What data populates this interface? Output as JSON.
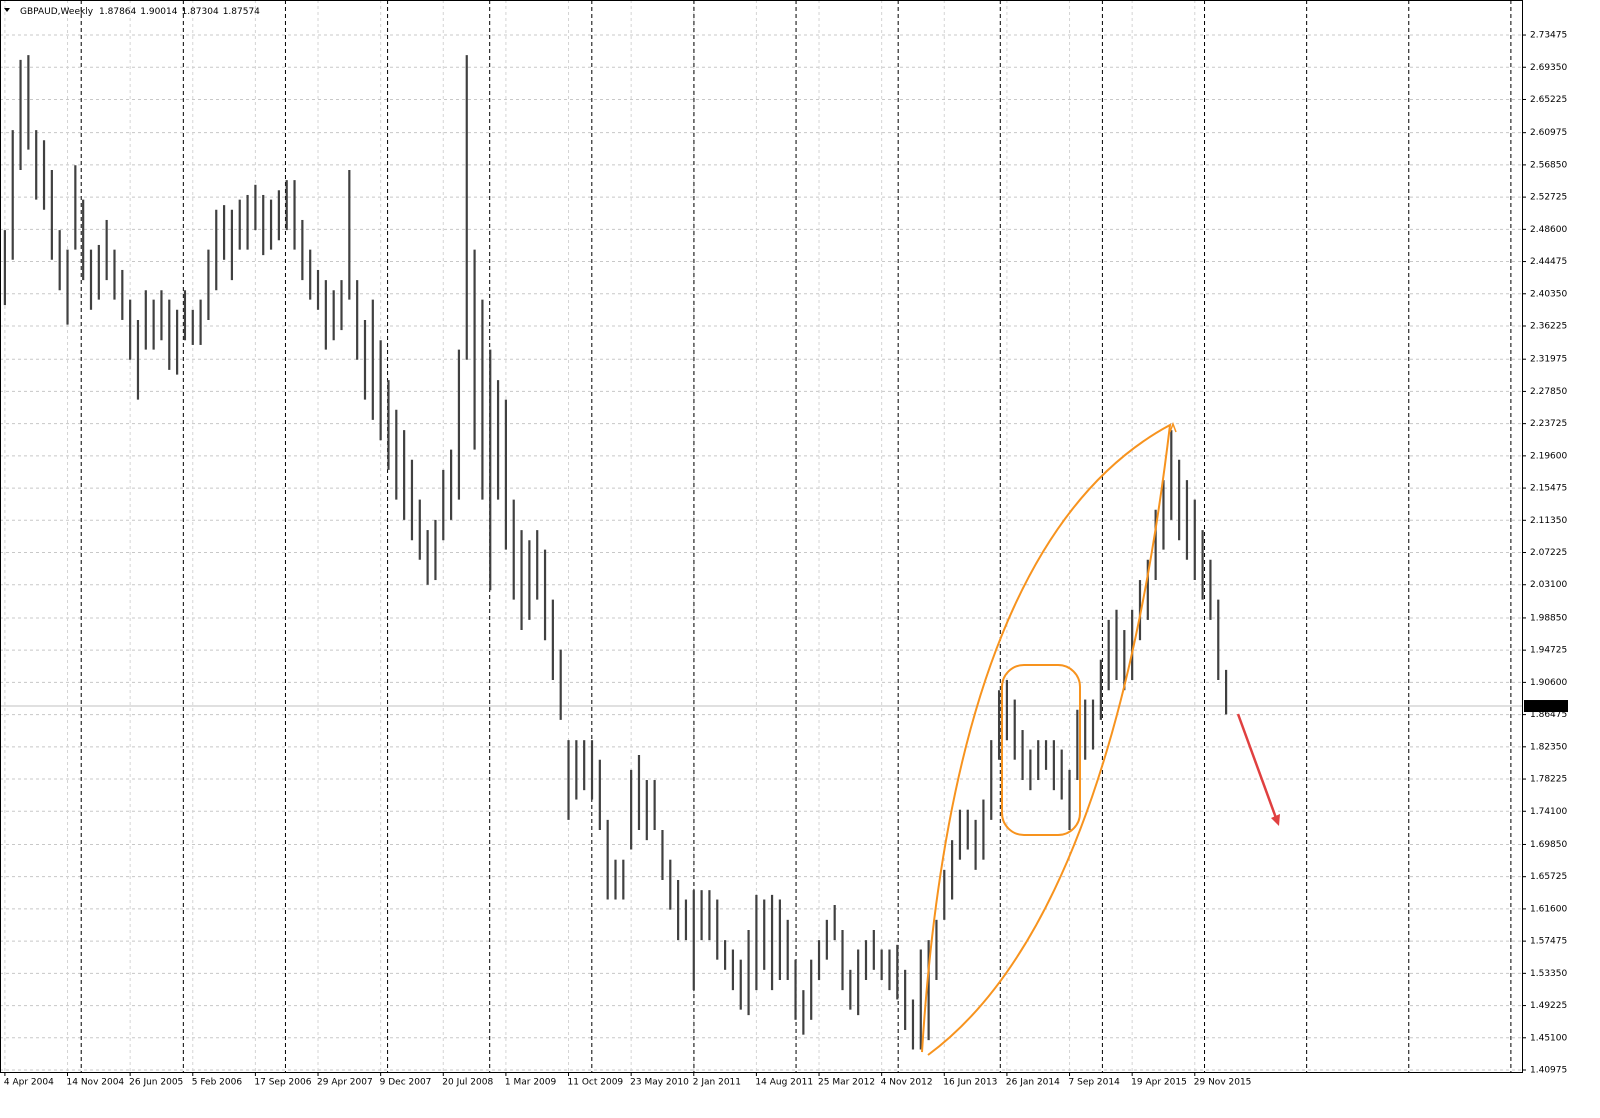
{
  "chart_data": {
    "type": "ohlc",
    "symbol": "GBPAUD,Weekly",
    "open": 1.87864,
    "high_now": 1.90014,
    "low_now": 1.87304,
    "close": 1.87574,
    "color": "#404040",
    "x": [
      0,
      4,
      8,
      12,
      16,
      20,
      24,
      28,
      32,
      36,
      40,
      44,
      48,
      52,
      56,
      60,
      64,
      68,
      72,
      76,
      80,
      84,
      88,
      92,
      96,
      100,
      104,
      108,
      112,
      116,
      120,
      124,
      128,
      132,
      136,
      140,
      144,
      148,
      152,
      156,
      160,
      164,
      168,
      172,
      176,
      180,
      184,
      188,
      192,
      196,
      200,
      204,
      208,
      212,
      216,
      220,
      224,
      228,
      232,
      236,
      240,
      244,
      248,
      252,
      256,
      260,
      264,
      268,
      272,
      276,
      280,
      284,
      288,
      292,
      296,
      300,
      304,
      308,
      312,
      316,
      320,
      324,
      328,
      332,
      336,
      340,
      344,
      348,
      352,
      356,
      360,
      364,
      368,
      372,
      376,
      380,
      384,
      388,
      392,
      396,
      400,
      404,
      408,
      412,
      416,
      420,
      424,
      428,
      432,
      436,
      440,
      444,
      448,
      452,
      456,
      460,
      464,
      468,
      472,
      476,
      480,
      484,
      488,
      492,
      496,
      500,
      504,
      508,
      512,
      516,
      520,
      524,
      528,
      532,
      536,
      540,
      544,
      548,
      552,
      556,
      560,
      564,
      568,
      572,
      576,
      580,
      584,
      588,
      592,
      596,
      600,
      604,
      608,
      612,
      616,
      620,
      624
    ],
    "high": [
      2.485,
      2.613,
      2.703,
      2.709,
      2.613,
      2.6,
      2.562,
      2.485,
      2.46,
      2.568,
      2.524,
      2.46,
      2.466,
      2.498,
      2.46,
      2.434,
      2.396,
      2.37,
      2.408,
      2.396,
      2.408,
      2.396,
      2.383,
      2.408,
      2.383,
      2.396,
      2.46,
      2.511,
      2.517,
      2.511,
      2.524,
      2.53,
      2.543,
      2.53,
      2.524,
      2.536,
      2.549,
      2.549,
      2.498,
      2.46,
      2.434,
      2.421,
      2.408,
      2.421,
      2.562,
      2.421,
      2.37,
      2.396,
      2.344,
      2.293,
      2.255,
      2.229,
      2.191,
      2.14,
      2.101,
      2.114,
      2.178,
      2.204,
      2.332,
      2.709,
      2.46,
      2.396,
      2.332,
      2.293,
      2.268,
      2.14,
      2.101,
      2.088,
      2.101,
      2.076,
      2.012,
      1.948,
      1.832,
      1.832,
      1.832,
      1.832,
      1.807,
      1.73,
      1.679,
      1.679,
      1.794,
      1.813,
      1.781,
      1.781,
      1.717,
      1.679,
      1.653,
      1.628,
      1.64,
      1.64,
      1.64,
      1.628,
      1.576,
      1.564,
      1.551,
      1.589,
      1.634,
      1.628,
      1.634,
      1.628,
      1.602,
      1.551,
      1.512,
      1.551,
      1.576,
      1.602,
      1.621,
      1.589,
      1.538,
      1.564,
      1.576,
      1.589,
      1.564,
      1.564,
      1.57,
      1.538,
      1.5,
      1.564,
      1.576,
      1.602,
      1.666,
      1.704,
      1.743,
      1.743,
      1.73,
      1.756,
      1.832,
      1.896,
      1.909,
      1.884,
      1.845,
      1.82,
      1.832,
      1.832,
      1.832,
      1.82,
      1.794,
      1.871,
      1.884,
      1.884,
      1.935,
      1.986,
      1.999,
      1.973,
      1.999,
      2.037,
      2.063,
      2.127,
      2.165,
      2.229,
      2.191,
      2.165,
      2.14,
      2.101,
      2.063,
      2.012,
      1.922
    ],
    "low": [
      2.389,
      2.447,
      2.562,
      2.588,
      2.524,
      2.511,
      2.447,
      2.408,
      2.364,
      2.46,
      2.421,
      2.383,
      2.396,
      2.421,
      2.396,
      2.37,
      2.319,
      2.268,
      2.332,
      2.332,
      2.344,
      2.306,
      2.3,
      2.344,
      2.338,
      2.338,
      2.37,
      2.408,
      2.447,
      2.421,
      2.46,
      2.46,
      2.485,
      2.453,
      2.46,
      2.472,
      2.485,
      2.46,
      2.421,
      2.396,
      2.383,
      2.332,
      2.344,
      2.357,
      2.396,
      2.319,
      2.268,
      2.242,
      2.216,
      2.178,
      2.14,
      2.114,
      2.088,
      2.063,
      2.031,
      2.037,
      2.088,
      2.114,
      2.14,
      2.319,
      2.204,
      2.14,
      2.024,
      2.14,
      2.076,
      2.012,
      1.973,
      1.986,
      2.012,
      1.96,
      1.909,
      1.858,
      1.73,
      1.756,
      1.768,
      1.756,
      1.717,
      1.628,
      1.628,
      1.628,
      1.692,
      1.717,
      1.704,
      1.717,
      1.653,
      1.615,
      1.576,
      1.576,
      1.512,
      1.576,
      1.576,
      1.551,
      1.538,
      1.512,
      1.487,
      1.48,
      1.512,
      1.538,
      1.512,
      1.525,
      1.525,
      1.474,
      1.455,
      1.474,
      1.525,
      1.551,
      1.576,
      1.512,
      1.487,
      1.48,
      1.525,
      1.538,
      1.525,
      1.512,
      1.5,
      1.461,
      1.436,
      1.436,
      1.448,
      1.525,
      1.602,
      1.628,
      1.679,
      1.692,
      1.666,
      1.679,
      1.73,
      1.807,
      1.832,
      1.807,
      1.781,
      1.768,
      1.781,
      1.794,
      1.768,
      1.756,
      1.717,
      1.781,
      1.807,
      1.82,
      1.858,
      1.896,
      1.909,
      1.896,
      1.909,
      1.96,
      1.986,
      2.037,
      2.076,
      2.114,
      2.088,
      2.063,
      2.037,
      2.012,
      1.986,
      1.909,
      1.865
    ],
    "last_price": 1.87574,
    "xlim": [
      -2.5,
      775.2
    ],
    "ylim": [
      1.4072,
      2.7796
    ],
    "xticks": [
      {
        "value": 0,
        "label": "4 Apr 2004"
      },
      {
        "value": 32,
        "label": "14 Nov 2004"
      },
      {
        "value": 64,
        "label": "26 Jun 2005"
      },
      {
        "value": 96,
        "label": "5 Feb 2006"
      },
      {
        "value": 128,
        "label": "17 Sep 2006"
      },
      {
        "value": 160,
        "label": "29 Apr 2007"
      },
      {
        "value": 192,
        "label": "9 Dec 2007"
      },
      {
        "value": 224,
        "label": "20 Jul 2008"
      },
      {
        "value": 256,
        "label": "1 Mar 2009"
      },
      {
        "value": 288,
        "label": "11 Oct 2009"
      },
      {
        "value": 320,
        "label": "23 May 2010"
      },
      {
        "value": 352,
        "label": "2 Jan 2011"
      },
      {
        "value": 384,
        "label": "14 Aug 2011"
      },
      {
        "value": 416,
        "label": "25 Mar 2012"
      },
      {
        "value": 448,
        "label": "4 Nov 2012"
      },
      {
        "value": 480,
        "label": "16 Jun 2013"
      },
      {
        "value": 512,
        "label": "26 Jan 2014"
      },
      {
        "value": 544,
        "label": "7 Sep 2014"
      },
      {
        "value": 576,
        "label": "19 Apr 2015"
      },
      {
        "value": 608,
        "label": "29 Nov 2015"
      }
    ],
    "yticks": [
      2.73475,
      {
        "value": 2.6935,
        "label": "2.69350"
      },
      2.65225,
      2.60975,
      {
        "value": 2.5685,
        "label": "2.56850"
      },
      2.52725,
      {
        "value": 2.486,
        "label": "2.48600"
      },
      2.44475,
      {
        "value": 2.4035,
        "label": "2.40350"
      },
      2.36225,
      2.31975,
      {
        "value": 2.2785,
        "label": "2.27850"
      },
      2.23725,
      {
        "value": 2.196,
        "label": "2.19600"
      },
      2.15475,
      {
        "value": 2.1135,
        "label": "2.11350"
      },
      2.07225,
      {
        "value": 2.031,
        "label": "2.03100"
      },
      {
        "value": 1.9885,
        "label": "1.98850"
      },
      1.94725,
      {
        "value": 1.906,
        "label": "1.90600"
      },
      1.86475,
      {
        "value": 1.8235,
        "label": "1.82350"
      },
      1.78225,
      {
        "value": 1.741,
        "label": "1.74100"
      },
      {
        "value": 1.6985,
        "label": "1.69850"
      },
      1.65725,
      {
        "value": 1.616,
        "label": "1.61600"
      },
      1.57475,
      {
        "value": 1.5335,
        "label": "1.53350"
      },
      1.49225,
      {
        "value": 1.451,
        "label": "1.45100"
      },
      1.40975
    ],
    "grid": true
  }
}
